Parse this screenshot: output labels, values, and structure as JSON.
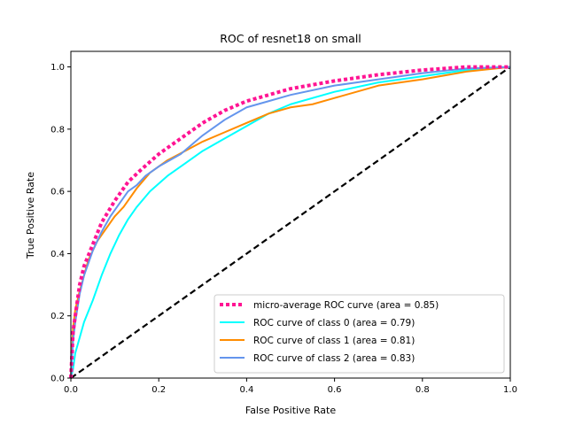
{
  "chart_data": {
    "type": "line",
    "title": "ROC of resnet18 on small",
    "xlabel": "False Positive Rate",
    "ylabel": "True Positive Rate",
    "xlim": [
      0.0,
      1.0
    ],
    "ylim": [
      0.0,
      1.05
    ],
    "xticks": [
      "0.0",
      "0.2",
      "0.4",
      "0.6",
      "0.8",
      "1.0"
    ],
    "yticks": [
      "0.0",
      "0.2",
      "0.4",
      "0.6",
      "0.8",
      "1.0"
    ],
    "grid": false,
    "legend_position": "lower-right",
    "series": [
      {
        "name": "micro-average ROC curve (area = 0.85)",
        "color": "#ff1493",
        "style": "dotted",
        "x": [
          0.0,
          0.005,
          0.01,
          0.02,
          0.03,
          0.05,
          0.07,
          0.1,
          0.13,
          0.16,
          0.2,
          0.25,
          0.3,
          0.35,
          0.4,
          0.45,
          0.5,
          0.6,
          0.7,
          0.8,
          0.9,
          1.0
        ],
        "y": [
          0.0,
          0.15,
          0.2,
          0.3,
          0.36,
          0.43,
          0.5,
          0.57,
          0.63,
          0.67,
          0.72,
          0.77,
          0.82,
          0.86,
          0.89,
          0.91,
          0.93,
          0.955,
          0.975,
          0.99,
          1.0,
          1.0
        ]
      },
      {
        "name": "ROC curve of class 0 (area = 0.79)",
        "color": "#00ffff",
        "style": "solid",
        "x": [
          0.0,
          0.005,
          0.01,
          0.02,
          0.03,
          0.05,
          0.07,
          0.09,
          0.11,
          0.13,
          0.15,
          0.18,
          0.22,
          0.26,
          0.3,
          0.35,
          0.4,
          0.45,
          0.5,
          0.6,
          0.7,
          0.8,
          0.9,
          1.0
        ],
        "y": [
          0.0,
          0.03,
          0.08,
          0.13,
          0.18,
          0.25,
          0.33,
          0.4,
          0.46,
          0.51,
          0.55,
          0.6,
          0.65,
          0.69,
          0.73,
          0.77,
          0.81,
          0.85,
          0.88,
          0.92,
          0.95,
          0.97,
          0.99,
          1.0
        ]
      },
      {
        "name": "ROC curve of class 1 (area = 0.81)",
        "color": "#ff8c00",
        "style": "solid",
        "x": [
          0.0,
          0.005,
          0.01,
          0.02,
          0.03,
          0.04,
          0.06,
          0.08,
          0.1,
          0.12,
          0.15,
          0.18,
          0.22,
          0.26,
          0.3,
          0.35,
          0.4,
          0.45,
          0.5,
          0.55,
          0.6,
          0.7,
          0.8,
          0.9,
          1.0
        ],
        "y": [
          0.0,
          0.16,
          0.22,
          0.28,
          0.33,
          0.38,
          0.44,
          0.48,
          0.52,
          0.55,
          0.61,
          0.66,
          0.7,
          0.73,
          0.76,
          0.79,
          0.82,
          0.85,
          0.87,
          0.88,
          0.9,
          0.94,
          0.96,
          0.985,
          1.0
        ]
      },
      {
        "name": "ROC curve of class 2 (area = 0.83)",
        "color": "#6495ed",
        "style": "solid",
        "x": [
          0.0,
          0.005,
          0.01,
          0.02,
          0.03,
          0.05,
          0.07,
          0.09,
          0.11,
          0.13,
          0.15,
          0.17,
          0.2,
          0.25,
          0.3,
          0.35,
          0.4,
          0.45,
          0.5,
          0.6,
          0.7,
          0.8,
          0.9,
          1.0
        ],
        "y": [
          0.0,
          0.12,
          0.18,
          0.27,
          0.33,
          0.41,
          0.47,
          0.52,
          0.56,
          0.6,
          0.62,
          0.65,
          0.68,
          0.72,
          0.78,
          0.83,
          0.87,
          0.89,
          0.91,
          0.94,
          0.96,
          0.98,
          0.995,
          1.0
        ]
      },
      {
        "name": "",
        "color": "#000000",
        "style": "dashed",
        "x": [
          0.0,
          1.0
        ],
        "y": [
          0.0,
          1.0
        ]
      }
    ],
    "legend": [
      "micro-average ROC curve (area = 0.85)",
      "ROC curve of class 0 (area = 0.79)",
      "ROC curve of class 1 (area = 0.81)",
      "ROC curve of class 2 (area = 0.83)"
    ]
  }
}
